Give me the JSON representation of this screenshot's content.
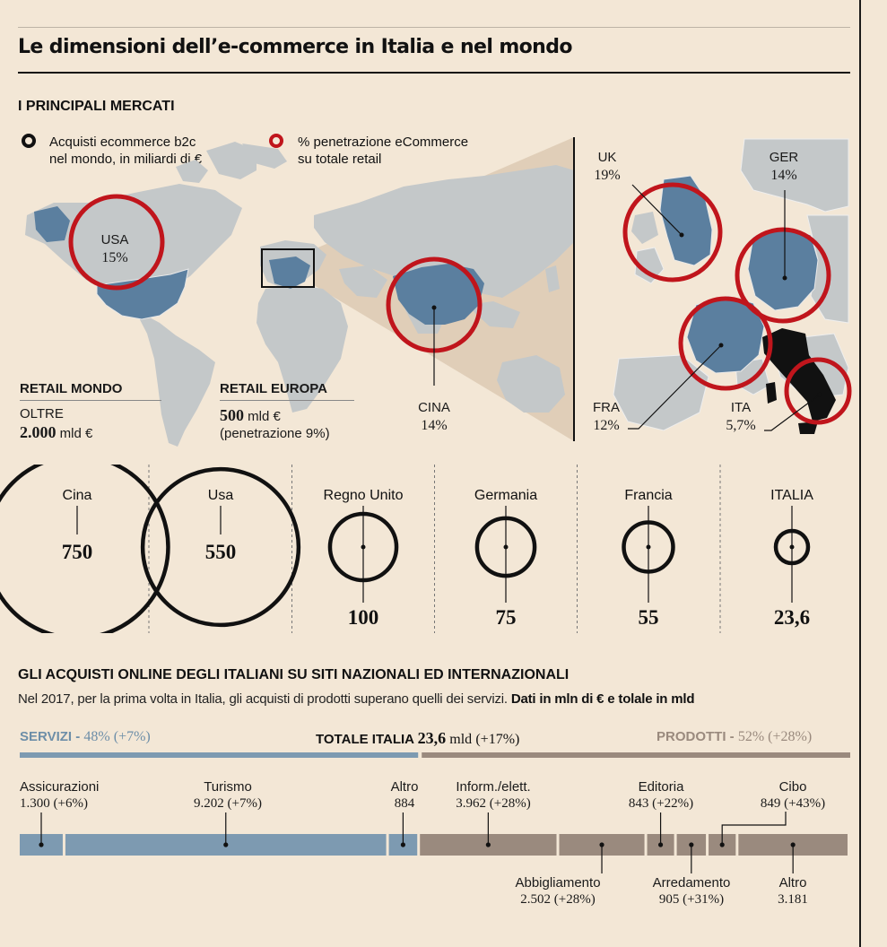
{
  "title": "Le dimensioni dell’e-commerce in Italia e nel mondo",
  "section1": {
    "heading": "I PRINCIPALI MERCATI",
    "legend_black": "Acquisti ecommerce b2c\nnel mondo, in miliardi di €",
    "legend_red": "% penetrazione eCommerce\nsu totale retail",
    "ring_black_color": "#111111",
    "ring_red_color": "#c0151c"
  },
  "map": {
    "usa": {
      "country": "USA",
      "pct": "15%"
    },
    "cina": {
      "country": "CINA",
      "pct": "14%"
    },
    "uk": {
      "country": "UK",
      "pct": "19%"
    },
    "ger": {
      "country": "GER",
      "pct": "14%"
    },
    "fra": {
      "country": "FRA",
      "pct": "12%"
    },
    "ita": {
      "country": "ITA",
      "pct": "5,7%"
    },
    "land_color": "#c4c8c9",
    "highlight_color": "#5b7f9f",
    "italy_color": "#111111"
  },
  "retail": {
    "mondo_head": "RETAIL MONDO",
    "mondo_line1": "OLTRE",
    "mondo_value": "2.000",
    "mondo_unit": "mld €",
    "europa_head": "RETAIL EUROPA",
    "europa_value": "500",
    "europa_unit": "mld €",
    "europa_note": "(penetrazione 9%)"
  },
  "chart_data": [
    {
      "type": "bubble",
      "unit": "miliardi di €",
      "categories": [
        "Cina",
        "Usa",
        "Regno Unito",
        "Germania",
        "Francia",
        "ITALIA"
      ],
      "values": [
        750,
        550,
        100,
        75,
        55,
        23.6
      ],
      "value_labels": [
        "750",
        "550",
        "100",
        "75",
        "55",
        "23,6"
      ]
    },
    {
      "type": "bar",
      "title": "TOTALE ITALIA 23,6 mld (+17%)",
      "unit": "mln di €",
      "groups": [
        {
          "name": "SERVIZI",
          "share": "48% (+7%)",
          "color": "#7d9ab1"
        },
        {
          "name": "PRODOTTI",
          "share": "52% (+28%)",
          "color": "#9a8a7e"
        }
      ],
      "segments": [
        {
          "label": "Assicurazioni",
          "value": 1300,
          "value_label": "1.300",
          "change": "(+6%)",
          "group": "SERVIZI",
          "label_pos": "top"
        },
        {
          "label": "Turismo",
          "value": 9202,
          "value_label": "9.202",
          "change": "(+7%)",
          "group": "SERVIZI",
          "label_pos": "top"
        },
        {
          "label": "Altro",
          "value": 884,
          "value_label": "884",
          "change": "",
          "group": "SERVIZI",
          "label_pos": "top"
        },
        {
          "label": "Inform./elett.",
          "value": 3962,
          "value_label": "3.962",
          "change": "(+28%)",
          "group": "PRODOTTI",
          "label_pos": "top"
        },
        {
          "label": "Abbigliamento",
          "value": 2502,
          "value_label": "2.502",
          "change": "(+28%)",
          "group": "PRODOTTI",
          "label_pos": "bottom"
        },
        {
          "label": "Editoria",
          "value": 843,
          "value_label": "843",
          "change": "(+22%)",
          "group": "PRODOTTI",
          "label_pos": "top"
        },
        {
          "label": "Arredamento",
          "value": 905,
          "value_label": "905",
          "change": "(+31%)",
          "group": "PRODOTTI",
          "label_pos": "bottom"
        },
        {
          "label": "Cibo",
          "value": 849,
          "value_label": "849",
          "change": "(+43%)",
          "group": "PRODOTTI",
          "label_pos": "top"
        },
        {
          "label": "Altro",
          "value": 3181,
          "value_label": "3.181",
          "change": "",
          "group": "PRODOTTI",
          "label_pos": "bottom"
        }
      ]
    }
  ],
  "section2": {
    "heading": "GLI ACQUISTI ONLINE DEGLI ITALIANI SU SITI NAZIONALI ED INTERNAZIONALI",
    "subtitle": "Nel 2017, per la prima volta in Italia, gli acquisti di prodotti superano quelli dei servizi.",
    "subtitle_bold": "Dati in mln di € e tolale in mld",
    "servizi_label": "SERVIZI -",
    "servizi_share": "48% (+7%)",
    "totale_label": "TOTALE ITALIA",
    "totale_value": "23,6",
    "totale_unit": "mld",
    "totale_change": "(+17%)",
    "prodotti_label": "PRODOTTI -",
    "prodotti_share": "52% (+28%)"
  }
}
